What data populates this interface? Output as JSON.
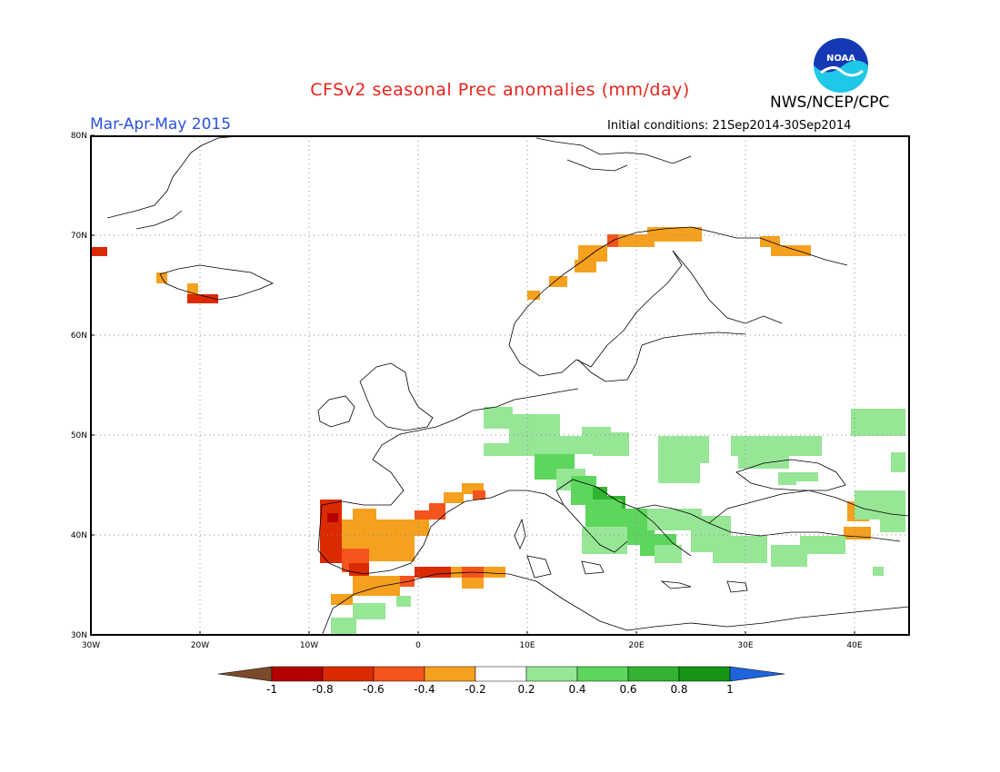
{
  "title": "CFSv2 seasonal Prec anomalies (mm/day)",
  "season": "Mar-Apr-May 2015",
  "initial_conditions": "Initial conditions: 21Sep2014-30Sep2014",
  "agency": "NWS/NCEP/CPC",
  "logo_text": "NOAA",
  "lat_labels": [
    "80N",
    "70N",
    "60N",
    "50N",
    "40N",
    "30N"
  ],
  "lon_labels": [
    "30W",
    "20W",
    "10W",
    "0",
    "10E",
    "20E",
    "30E",
    "40E"
  ],
  "colorbar": {
    "labels": [
      "-1",
      "-0.8",
      "-0.6",
      "-0.4",
      "-0.2",
      "0.2",
      "0.4",
      "0.6",
      "0.8",
      "1"
    ],
    "colors": [
      "#7a4a2a",
      "#b40000",
      "#dc2a00",
      "#f5541c",
      "#f5a01e",
      "#ffffff",
      "#96e696",
      "#5cd65c",
      "#32b432",
      "#149614",
      "#1e64dc"
    ]
  },
  "map_colors": {
    "dark_red": "#b40000",
    "red": "#dc2a00",
    "orange_red": "#f5541c",
    "orange": "#f5a01e",
    "light_green": "#96e696",
    "green": "#5cd65c",
    "dark_green": "#32b432"
  }
}
